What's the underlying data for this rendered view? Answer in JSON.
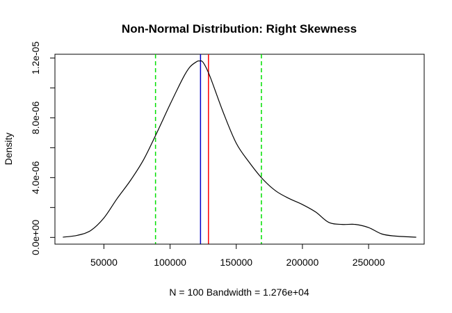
{
  "chart_data": {
    "type": "line",
    "title": "Non-Normal Distribution: Right Skewness",
    "xlabel": "N = 100   Bandwidth = 1.276e+04",
    "ylabel": "Density",
    "xlim": [
      13000,
      292000
    ],
    "ylim": [
      -4.5e-07,
      1.225e-05
    ],
    "x_ticks": [
      {
        "value": 50000,
        "label": "50000"
      },
      {
        "value": 100000,
        "label": "100000"
      },
      {
        "value": 150000,
        "label": "150000"
      },
      {
        "value": 200000,
        "label": "200000"
      },
      {
        "value": 250000,
        "label": "250000"
      }
    ],
    "y_ticks": [
      {
        "value": 0,
        "label": "0.0e+00"
      },
      {
        "value": 2e-06,
        "label": ""
      },
      {
        "value": 4e-06,
        "label": "4.0e-06"
      },
      {
        "value": 6e-06,
        "label": ""
      },
      {
        "value": 8e-06,
        "label": "8.0e-06"
      },
      {
        "value": 1e-05,
        "label": ""
      },
      {
        "value": 1.2e-05,
        "label": "1.2e-05"
      }
    ],
    "series": [
      {
        "color": "#000000",
        "x": [
          19000,
          30000,
          40000,
          50000,
          60000,
          70000,
          80000,
          90000,
          100000,
          110000,
          115000,
          120000,
          122000,
          125000,
          130000,
          140000,
          150000,
          160000,
          170000,
          180000,
          190000,
          200000,
          210000,
          220000,
          230000,
          240000,
          250000,
          260000,
          270000,
          286000
        ],
        "y": [
          1.6e-08,
          1.4e-07,
          4.6e-07,
          1.3e-06,
          2.6e-06,
          3.8e-06,
          5.2e-06,
          7e-06,
          8.9e-06,
          1.07e-05,
          1.14e-05,
          1.175e-05,
          1.18e-05,
          1.17e-05,
          1.08e-05,
          8.4e-06,
          6.3e-06,
          5e-06,
          3.9e-06,
          3.1e-06,
          2.6e-06,
          2.2e-06,
          1.7e-06,
          1e-06,
          8.7e-07,
          8.7e-07,
          6.6e-07,
          2.3e-07,
          9e-08,
          1.3e-08
        ]
      }
    ],
    "vlines": [
      {
        "x": 123000,
        "color": "#0000c8",
        "style": "solid"
      },
      {
        "x": 129000,
        "color": "#ff0000",
        "style": "solid"
      },
      {
        "x": 89000,
        "color": "#00e000",
        "style": "dashed"
      },
      {
        "x": 169000,
        "color": "#00e000",
        "style": "dashed"
      }
    ],
    "grid": false,
    "legend": "none"
  }
}
